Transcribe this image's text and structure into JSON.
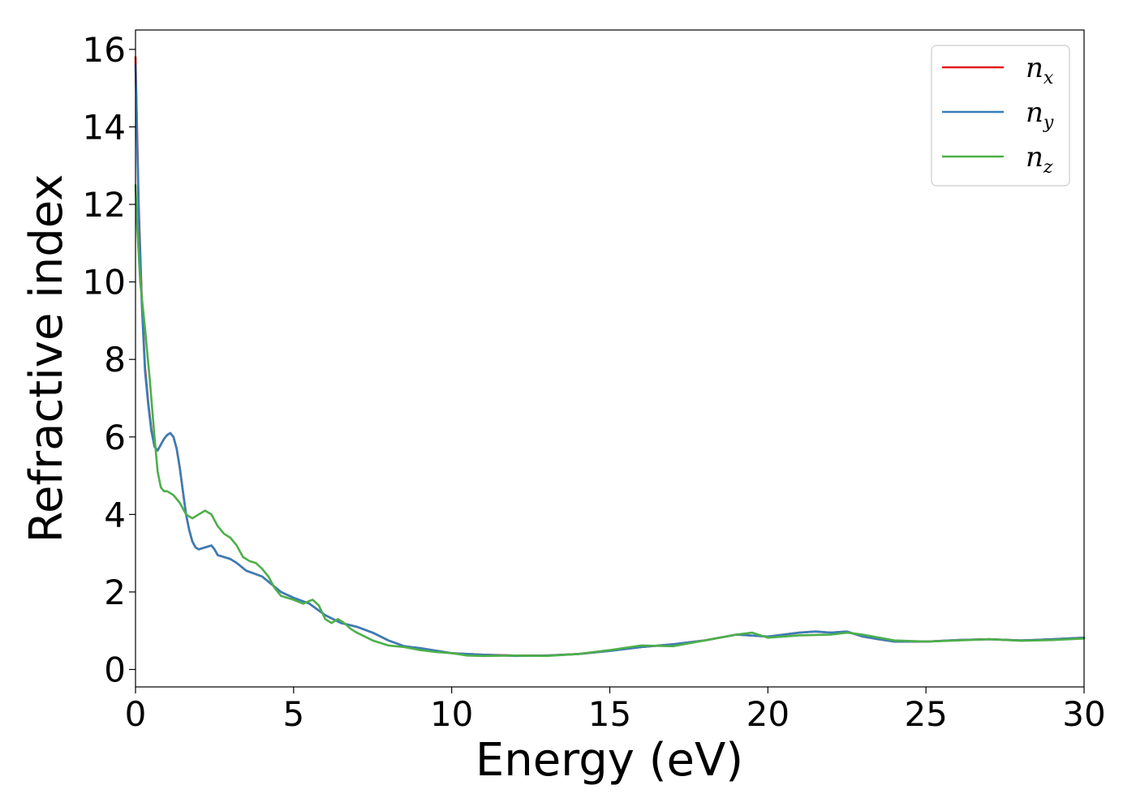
{
  "chart_data": {
    "type": "line",
    "xlabel": "Energy (eV)",
    "ylabel": "Refractive index",
    "xlim": [
      0,
      30
    ],
    "ylim": [
      -0.45,
      16.5
    ],
    "xticks": [
      0,
      5,
      10,
      15,
      20,
      25,
      30
    ],
    "yticks": [
      0,
      2,
      4,
      6,
      8,
      10,
      12,
      14,
      16
    ],
    "grid": false,
    "legend_position": "top-right",
    "series": [
      {
        "name": "n_x",
        "label_main": "n",
        "label_sub": "x",
        "color": "#e41a1c",
        "x": [
          0.0,
          0.1,
          0.2,
          0.3,
          0.4,
          0.5,
          0.6,
          0.7,
          0.8,
          0.9,
          1.0,
          1.1,
          1.2,
          1.3,
          1.4,
          1.5,
          1.6,
          1.7,
          1.8,
          1.9,
          2.0,
          2.2,
          2.4,
          2.5,
          2.6,
          2.8,
          3.0,
          3.2,
          3.5,
          4.0,
          4.3,
          4.6,
          5.0,
          5.5,
          6.0,
          6.5,
          7.0,
          7.5,
          8.0,
          8.5,
          9.0,
          10.0,
          11.0,
          12.0,
          13.0,
          14.0,
          15.0,
          16.0,
          17.0,
          18.0,
          19.0,
          20.0,
          21.0,
          21.5,
          22.0,
          22.5,
          23.0,
          23.5,
          24.0,
          25.0,
          26.0,
          27.0,
          28.0,
          29.0,
          30.0
        ],
        "values": [
          15.8,
          12.0,
          9.5,
          7.8,
          6.9,
          6.2,
          5.75,
          5.65,
          5.8,
          5.95,
          6.05,
          6.1,
          6.0,
          5.7,
          5.2,
          4.6,
          4.0,
          3.6,
          3.3,
          3.15,
          3.1,
          3.15,
          3.2,
          3.1,
          2.95,
          2.9,
          2.85,
          2.75,
          2.55,
          2.4,
          2.2,
          2.0,
          1.85,
          1.7,
          1.4,
          1.2,
          1.1,
          0.95,
          0.75,
          0.6,
          0.55,
          0.42,
          0.38,
          0.36,
          0.36,
          0.4,
          0.48,
          0.58,
          0.65,
          0.75,
          0.9,
          0.85,
          0.95,
          0.98,
          0.95,
          0.98,
          0.85,
          0.78,
          0.72,
          0.72,
          0.76,
          0.78,
          0.75,
          0.78,
          0.82
        ]
      },
      {
        "name": "n_y",
        "label_main": "n",
        "label_sub": "y",
        "color": "#377eb8",
        "x": [
          0.0,
          0.1,
          0.2,
          0.3,
          0.4,
          0.5,
          0.6,
          0.7,
          0.8,
          0.9,
          1.0,
          1.1,
          1.2,
          1.3,
          1.4,
          1.5,
          1.6,
          1.7,
          1.8,
          1.9,
          2.0,
          2.2,
          2.4,
          2.5,
          2.6,
          2.8,
          3.0,
          3.2,
          3.5,
          4.0,
          4.3,
          4.6,
          5.0,
          5.5,
          6.0,
          6.5,
          7.0,
          7.5,
          8.0,
          8.5,
          9.0,
          10.0,
          11.0,
          12.0,
          13.0,
          14.0,
          15.0,
          16.0,
          17.0,
          18.0,
          19.0,
          20.0,
          21.0,
          21.5,
          22.0,
          22.5,
          23.0,
          23.5,
          24.0,
          25.0,
          26.0,
          27.0,
          28.0,
          29.0,
          30.0
        ],
        "values": [
          15.6,
          11.8,
          9.4,
          7.7,
          6.85,
          6.15,
          5.75,
          5.65,
          5.8,
          5.95,
          6.05,
          6.1,
          6.0,
          5.7,
          5.2,
          4.6,
          4.0,
          3.6,
          3.3,
          3.15,
          3.1,
          3.15,
          3.2,
          3.1,
          2.95,
          2.9,
          2.85,
          2.75,
          2.55,
          2.4,
          2.2,
          2.0,
          1.85,
          1.7,
          1.4,
          1.2,
          1.1,
          0.95,
          0.75,
          0.6,
          0.55,
          0.42,
          0.38,
          0.35,
          0.36,
          0.4,
          0.48,
          0.58,
          0.65,
          0.75,
          0.9,
          0.85,
          0.95,
          0.98,
          0.95,
          0.98,
          0.85,
          0.78,
          0.72,
          0.72,
          0.76,
          0.78,
          0.75,
          0.78,
          0.82
        ]
      },
      {
        "name": "n_z",
        "label_main": "n",
        "label_sub": "z",
        "color": "#4daf4a",
        "x": [
          0.0,
          0.05,
          0.15,
          0.3,
          0.45,
          0.6,
          0.7,
          0.8,
          0.9,
          1.0,
          1.2,
          1.4,
          1.6,
          1.8,
          2.0,
          2.2,
          2.4,
          2.6,
          2.8,
          3.0,
          3.2,
          3.4,
          3.6,
          3.8,
          4.0,
          4.2,
          4.4,
          4.6,
          4.8,
          5.0,
          5.3,
          5.6,
          5.8,
          6.0,
          6.2,
          6.4,
          6.6,
          6.8,
          7.0,
          7.5,
          8.0,
          8.5,
          9.0,
          9.5,
          10.0,
          10.5,
          11.0,
          12.0,
          13.0,
          14.0,
          15.0,
          16.0,
          17.0,
          18.0,
          19.0,
          19.5,
          20.0,
          21.0,
          22.0,
          22.5,
          23.0,
          24.0,
          25.0,
          26.0,
          27.0,
          28.0,
          29.0,
          30.0
        ],
        "values": [
          12.5,
          11.5,
          10.0,
          8.8,
          7.5,
          6.0,
          5.1,
          4.7,
          4.6,
          4.6,
          4.5,
          4.3,
          4.0,
          3.9,
          4.0,
          4.1,
          4.0,
          3.7,
          3.5,
          3.4,
          3.2,
          2.9,
          2.8,
          2.75,
          2.6,
          2.4,
          2.1,
          1.9,
          1.85,
          1.8,
          1.7,
          1.8,
          1.65,
          1.3,
          1.2,
          1.3,
          1.2,
          1.05,
          0.95,
          0.75,
          0.62,
          0.58,
          0.5,
          0.45,
          0.42,
          0.36,
          0.35,
          0.36,
          0.35,
          0.4,
          0.5,
          0.62,
          0.6,
          0.75,
          0.9,
          0.95,
          0.82,
          0.88,
          0.9,
          0.95,
          0.9,
          0.75,
          0.72,
          0.75,
          0.78,
          0.74,
          0.76,
          0.8
        ]
      }
    ]
  }
}
